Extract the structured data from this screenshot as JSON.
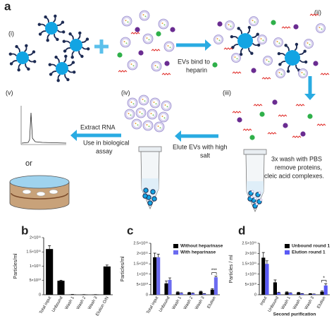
{
  "figure_label": "a",
  "diagram": {
    "steps": [
      "(i)",
      "(ii)",
      "(iii)",
      "(iv)",
      "(v)"
    ],
    "captions": {
      "bind": [
        "EVs bind to",
        "heparin"
      ],
      "wash": [
        "3x wash with PBS",
        "remove proteins,",
        "nucleic acid complexes."
      ],
      "elute": [
        "Elute EVs with high",
        "salt"
      ],
      "extract": [
        "Extract RNA"
      ],
      "use": [
        "Use in biological",
        "assay"
      ],
      "or": "or"
    }
  },
  "chart_data": [
    {
      "type": "bar",
      "panel": "b",
      "ylabel": "Particles/ml",
      "categories": [
        "Total input",
        "Unbound",
        "Wash 1",
        "Wash 2",
        "Wash 3",
        "Elution O/N"
      ],
      "series": [
        {
          "color": "#000000",
          "values": [
            160000000000.0,
            49000000000.0,
            1000000000.0,
            500000000.0,
            500000000.0,
            99000000000.0
          ],
          "errors": [
            12000000000.0,
            2000000000.0,
            200000000.0,
            200000000.0,
            200000000.0,
            5000000000.0
          ]
        }
      ],
      "ylim": [
        0,
        200000000000.0
      ],
      "yticks": [
        0,
        {
          "value": 50000000000.0,
          "label": "5×10¹⁰"
        },
        {
          "value": 100000000000.0,
          "label": "1×10¹¹"
        },
        {
          "value": 150000000000.0,
          "label": "1.5×10¹¹"
        },
        {
          "value": 200000000000.0,
          "label": "2×10¹¹"
        }
      ]
    },
    {
      "type": "bar",
      "panel": "c",
      "ylabel": "Particles/ml",
      "categories": [
        "Total input",
        "Unbound",
        "Wash 1",
        "Wash 2",
        "Wash 3",
        "Elution"
      ],
      "series": [
        {
          "name": "Without heparinase",
          "color": "#000000",
          "values": [
            182000000000.0,
            55000000000.0,
            12000000000.0,
            10000000000.0,
            15000000000.0,
            25000000000.0
          ],
          "errors": [
            20000000000.0,
            12000000000.0,
            2000000000.0,
            2000000000.0,
            2000000000.0,
            4000000000.0
          ]
        },
        {
          "name": "With heparinase",
          "color": "#6b6bf0",
          "values": [
            182000000000.0,
            72000000000.0,
            8000000000.0,
            7000000000.0,
            5000000000.0,
            85000000000.0
          ],
          "errors": [
            15000000000.0,
            10000000000.0,
            2000000000.0,
            2000000000.0,
            1000000000.0,
            5000000000.0
          ]
        }
      ],
      "annotation": "***",
      "ylim": [
        0,
        250000000000.0
      ],
      "yticks": [
        0,
        {
          "value": 50000000000.0,
          "label": "5×10¹⁰"
        },
        {
          "value": 100000000000.0,
          "label": "1×10¹¹"
        },
        {
          "value": 150000000000.0,
          "label": "1.5×10¹¹"
        },
        {
          "value": 200000000000.0,
          "label": "2×10¹¹"
        },
        {
          "value": 250000000000.0,
          "label": "2.5×10¹¹"
        }
      ]
    },
    {
      "type": "bar",
      "panel": "d",
      "ylabel": "Particles / ml",
      "xlabel": "Second purification",
      "categories": [
        "Input",
        "Unbound",
        "Wash 1",
        "Wash 2",
        "Wash 3",
        "Elution"
      ],
      "series": [
        {
          "name": "Unbound round 1",
          "color": "#000000",
          "values": [
            180000000000.0,
            60000000000.0,
            12000000000.0,
            10000000000.0,
            5000000000.0,
            15000000000.0
          ],
          "errors": [
            25000000000.0,
            12000000000.0,
            2000000000.0,
            2000000000.0,
            1000000000.0,
            4000000000.0
          ]
        },
        {
          "name": "Elution round 1",
          "color": "#5a5af5",
          "values": [
            150000000000.0,
            10000000000.0,
            8000000000.0,
            5000000000.0,
            3000000000.0,
            45000000000.0
          ],
          "errors": [
            15000000000.0,
            2000000000.0,
            2000000000.0,
            1000000000.0,
            1000000000.0,
            8000000000.0
          ]
        }
      ],
      "annotation": "*",
      "ylim": [
        0,
        250000000000.0
      ],
      "yticks": [
        0,
        {
          "value": 50000000000.0,
          "label": "5×10¹⁰"
        },
        {
          "value": 100000000000.0,
          "label": "1×10¹¹"
        },
        {
          "value": 150000000000.0,
          "label": "1.5×10¹¹"
        },
        {
          "value": 200000000000.0,
          "label": "2×10¹¹"
        },
        {
          "value": 250000000000.0,
          "label": "2.5×10¹¹"
        }
      ]
    }
  ]
}
